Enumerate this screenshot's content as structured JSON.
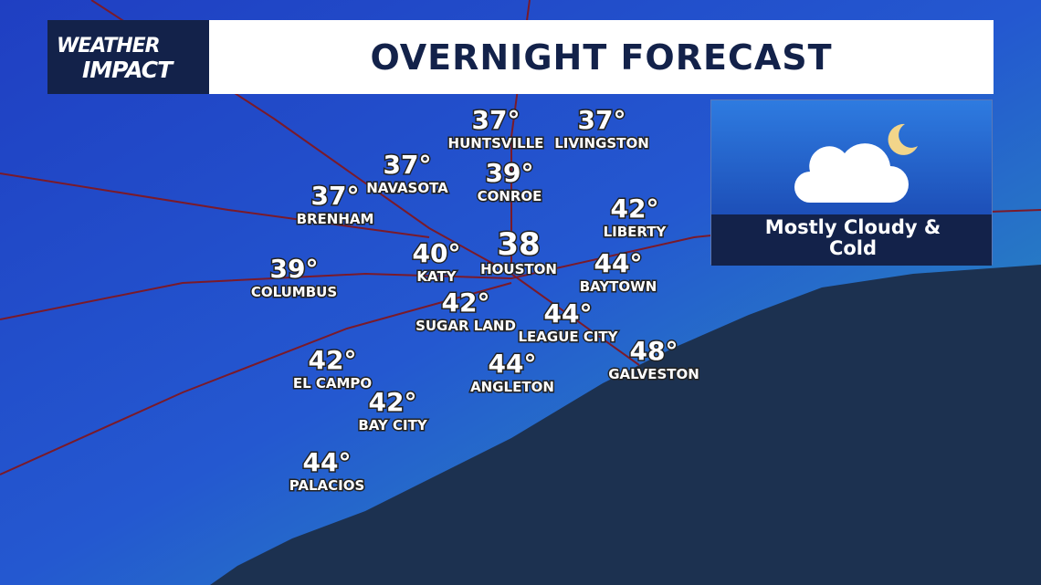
{
  "header": {
    "logo": {
      "line1": "WEATHER",
      "line2": "IMPACT"
    },
    "title": "OVERNIGHT FORECAST"
  },
  "condition": {
    "text": "Mostly Cloudy & Cold"
  },
  "cities": [
    {
      "name": "HUNTSVILLE",
      "temp": "37°"
    },
    {
      "name": "LIVINGSTON",
      "temp": "37°"
    },
    {
      "name": "NAVASOTA",
      "temp": "37°"
    },
    {
      "name": "CONROE",
      "temp": "39°"
    },
    {
      "name": "BRENHAM",
      "temp": "37°"
    },
    {
      "name": "LIBERTY",
      "temp": "42°"
    },
    {
      "name": "KATY",
      "temp": "40°"
    },
    {
      "name": "HOUSTON",
      "temp": "38"
    },
    {
      "name": "COLUMBUS",
      "temp": "39°"
    },
    {
      "name": "BAYTOWN",
      "temp": "44°"
    },
    {
      "name": "SUGAR LAND",
      "temp": "42°"
    },
    {
      "name": "LEAGUE CITY",
      "temp": "44°"
    },
    {
      "name": "GALVESTON",
      "temp": "48°"
    },
    {
      "name": "EL CAMPO",
      "temp": "42°"
    },
    {
      "name": "ANGLETON",
      "temp": "44°"
    },
    {
      "name": "BAY CITY",
      "temp": "42°"
    },
    {
      "name": "PALACIOS",
      "temp": "44°"
    }
  ]
}
